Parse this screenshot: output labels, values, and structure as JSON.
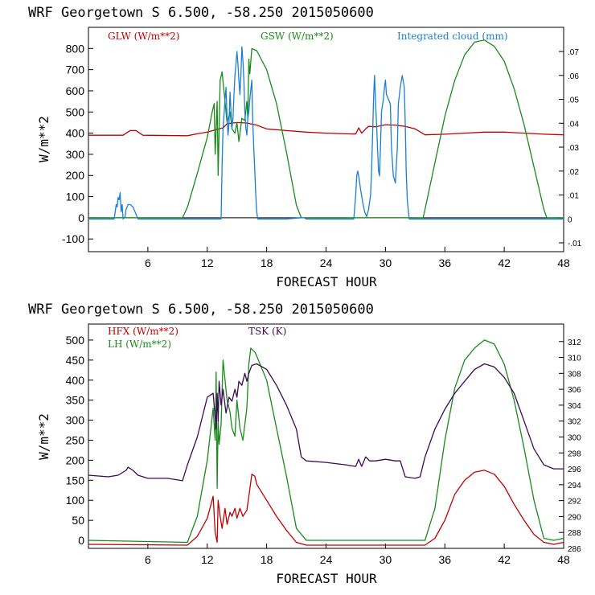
{
  "chart_data": [
    {
      "type": "line",
      "header": "WRF   Georgetown S   6.500, -58.250  2015050600",
      "xlabel": "FORECAST HOUR",
      "ylabel": "W/m**2",
      "xlim": [
        0,
        48
      ],
      "ylim": [
        -160,
        900
      ],
      "xticks": [
        6,
        12,
        18,
        24,
        30,
        36,
        42,
        48
      ],
      "yticks": [
        -100,
        0,
        100,
        200,
        300,
        400,
        500,
        600,
        700,
        800
      ],
      "y2lim": [
        -0.0137,
        0.0801
      ],
      "y2ticks": [
        -0.01,
        0,
        0.01,
        0.02,
        0.03,
        0.04,
        0.05,
        0.06,
        0.07
      ],
      "y2ticklabels": [
        "-.01",
        "0",
        ".01",
        ".02",
        ".03",
        ".04",
        ".05",
        ".06",
        ".07"
      ],
      "zero_line": true,
      "series": [
        {
          "name": "GLW (W/m**2)",
          "color": "#c00000",
          "axis": "left",
          "x": [
            0,
            3.5,
            4.2,
            4.8,
            5.5,
            10,
            11,
            12,
            13,
            13.6,
            14,
            15,
            16,
            17,
            18,
            20,
            22,
            24,
            26,
            27,
            27.3,
            27.6,
            28,
            28.3,
            29,
            30,
            31,
            32,
            33,
            34,
            36,
            38,
            40,
            42,
            44,
            46,
            48
          ],
          "y": [
            390,
            390,
            412,
            412,
            390,
            388,
            397,
            405,
            418,
            425,
            445,
            450,
            448,
            438,
            420,
            412,
            405,
            400,
            397,
            396,
            425,
            400,
            420,
            432,
            430,
            440,
            438,
            432,
            420,
            392,
            395,
            400,
            405,
            405,
            400,
            395,
            392
          ]
        },
        {
          "name": "GSW (W/m**2)",
          "color": "#1a8a1a",
          "axis": "left",
          "x": [
            0,
            9.5,
            10,
            11,
            12,
            12.5,
            12.7,
            12.8,
            13,
            13.1,
            13.3,
            13.5,
            14,
            14.3,
            14.5,
            14.8,
            15,
            15.2,
            15.5,
            15.8,
            16,
            16.1,
            16.2,
            16.3,
            16.5,
            17,
            18,
            19,
            20,
            21,
            21.5,
            22,
            33.8,
            34,
            35,
            36,
            37,
            38,
            39,
            40,
            41,
            42,
            43,
            44,
            45,
            46,
            46.3,
            48
          ],
          "y": [
            0,
            0,
            50,
            210,
            380,
            500,
            540,
            300,
            550,
            200,
            650,
            690,
            450,
            500,
            420,
            400,
            450,
            360,
            470,
            460,
            550,
            470,
            750,
            680,
            800,
            790,
            700,
            540,
            310,
            60,
            0,
            0,
            0,
            40,
            260,
            480,
            650,
            770,
            830,
            840,
            810,
            740,
            610,
            440,
            240,
            40,
            0,
            0
          ]
        },
        {
          "name": "Integrated cloud (mm)",
          "color": "#1a7fd4",
          "axis": "right",
          "x": [
            0,
            2.6,
            2.8,
            2.9,
            3.0,
            3.1,
            3.2,
            3.3,
            3.4,
            3.5,
            3.7,
            3.8,
            4.0,
            4.2,
            4.5,
            4.9,
            5.0,
            13.4,
            13.5,
            13.6,
            13.7,
            13.8,
            13.9,
            14.0,
            14.1,
            14.2,
            14.3,
            14.4,
            14.5,
            14.6,
            14.7,
            14.8,
            14.9,
            15.0,
            15.1,
            15.2,
            15.3,
            15.4,
            15.5,
            15.6,
            15.7,
            15.8,
            15.9,
            16.0,
            16.1,
            16.2,
            16.3,
            16.5,
            16.6,
            16.7,
            16.8,
            16.9,
            17.0,
            17.1,
            18.0,
            20.0,
            21.5,
            21.8,
            22.0,
            26.8,
            27.0,
            27.1,
            27.2,
            27.3,
            27.5,
            27.7,
            27.9,
            28.1,
            28.3,
            28.5,
            28.6,
            28.7,
            28.8,
            28.9,
            29.0,
            29.1,
            29.2,
            29.3,
            29.4,
            29.5,
            29.6,
            29.8,
            29.9,
            30.0,
            30.1,
            30.3,
            30.5,
            30.6,
            30.8,
            31.0,
            31.2,
            31.3,
            31.5,
            31.7,
            31.9,
            32.0,
            32.1,
            32.2,
            32.4,
            48.0
          ],
          "y": [
            0,
            0,
            0.006,
            0.005,
            0.009,
            0.008,
            0.011,
            0.003,
            0.006,
            0,
            0.001,
            0.004,
            0.006,
            0.006,
            0.005,
            0.001,
            0,
            0,
            0.022,
            0.038,
            0.044,
            0.05,
            0.055,
            0.042,
            0.035,
            0.04,
            0.053,
            0.045,
            0.038,
            0.042,
            0.052,
            0.06,
            0.065,
            0.07,
            0.065,
            0.058,
            0.052,
            0.06,
            0.072,
            0.066,
            0.058,
            0.045,
            0.038,
            0.035,
            0.042,
            0.045,
            0.05,
            0.058,
            0.04,
            0.03,
            0.02,
            0.01,
            0.003,
            0,
            0,
            0,
            0.0005,
            0.0005,
            0,
            0,
            0.01,
            0.018,
            0.02,
            0.018,
            0.012,
            0.007,
            0.003,
            0.001,
            0.004,
            0.01,
            0.02,
            0.035,
            0.05,
            0.06,
            0.048,
            0.04,
            0.03,
            0.02,
            0.018,
            0.03,
            0.045,
            0.05,
            0.055,
            0.058,
            0.052,
            0.05,
            0.048,
            0.03,
            0.018,
            0.015,
            0.03,
            0.048,
            0.055,
            0.06,
            0.055,
            0.04,
            0.02,
            0.008,
            0,
            0
          ]
        }
      ]
    },
    {
      "type": "line",
      "header": "WRF   Georgetown S   6.500, -58.250  2015050600",
      "xlabel": "FORECAST HOUR",
      "ylabel": "W/m**2",
      "xlim": [
        0,
        48
      ],
      "ylim": [
        -20,
        540
      ],
      "xticks": [
        6,
        12,
        18,
        24,
        30,
        36,
        42,
        48
      ],
      "yticks": [
        0,
        50,
        100,
        150,
        200,
        250,
        300,
        350,
        400,
        450,
        500
      ],
      "y2lim": [
        286,
        314.2
      ],
      "y2ticks": [
        286,
        288,
        290,
        292,
        294,
        296,
        298,
        300,
        302,
        304,
        306,
        308,
        310,
        312
      ],
      "y2ticklabels": [
        "286",
        "288",
        "290",
        "292",
        "294",
        "296",
        "298",
        "300",
        "302",
        "304",
        "306",
        "308",
        "310",
        "312"
      ],
      "zero_line": false,
      "series": [
        {
          "name": "HFX (W/m**2)",
          "color": "#c00000",
          "axis": "left",
          "x": [
            0,
            10,
            11,
            12,
            12.6,
            12.8,
            13.0,
            13.1,
            13.3,
            13.5,
            13.8,
            14,
            14.3,
            14.5,
            14.8,
            15,
            15.3,
            15.6,
            16,
            16.2,
            16.5,
            16.8,
            17,
            18,
            19,
            20,
            21,
            22,
            34,
            35,
            36,
            37,
            38,
            39,
            40,
            41,
            42,
            43,
            44,
            45,
            46,
            47,
            48
          ],
          "y": [
            -10,
            -12,
            10,
            55,
            110,
            20,
            -5,
            100,
            60,
            30,
            80,
            40,
            70,
            60,
            80,
            55,
            80,
            60,
            75,
            110,
            165,
            160,
            140,
            100,
            60,
            25,
            -5,
            -12,
            -12,
            5,
            50,
            115,
            150,
            170,
            175,
            165,
            135,
            90,
            50,
            15,
            -5,
            -10,
            -5
          ]
        },
        {
          "name": "LH (W/m**2)",
          "color": "#1a8a1a",
          "axis": "left",
          "x": [
            0,
            10,
            11,
            12,
            12.6,
            12.8,
            12.9,
            13.0,
            13.1,
            13.2,
            13.4,
            13.6,
            14,
            14.3,
            14.5,
            14.8,
            15,
            15.3,
            15.6,
            16,
            16.2,
            16.4,
            16.8,
            17,
            18,
            19,
            20,
            21,
            22,
            34,
            35,
            36,
            37,
            38,
            39,
            40,
            41,
            42,
            43,
            44,
            45,
            46,
            47,
            48
          ],
          "y": [
            0,
            -5,
            60,
            200,
            330,
            250,
            420,
            130,
            300,
            240,
            290,
            450,
            350,
            320,
            280,
            260,
            350,
            280,
            250,
            330,
            440,
            480,
            470,
            460,
            400,
            280,
            160,
            30,
            0,
            0,
            80,
            250,
            380,
            450,
            480,
            500,
            490,
            440,
            350,
            230,
            100,
            5,
            0,
            5
          ]
        },
        {
          "name": "TSK (K)",
          "color": "#3a0a55",
          "axis": "right",
          "x": [
            0,
            1,
            2,
            3,
            3.8,
            4,
            4.5,
            5,
            6,
            8,
            9.5,
            10,
            11,
            12,
            12.6,
            12.9,
            13.0,
            13.1,
            13.2,
            13.4,
            13.6,
            13.9,
            14.2,
            14.5,
            14.8,
            15.0,
            15.2,
            15.5,
            15.8,
            16.0,
            16.2,
            16.5,
            17,
            18,
            19,
            20,
            21,
            21.5,
            22,
            24,
            26,
            27,
            27.3,
            27.6,
            28,
            28.4,
            29,
            30,
            31,
            31.5,
            32,
            33,
            33.5,
            34,
            35,
            36,
            37,
            38,
            39,
            40,
            41,
            42,
            43,
            44,
            45,
            46,
            47,
            48
          ],
          "y": [
            295.2,
            295.1,
            295,
            295.2,
            295.8,
            296.2,
            295.8,
            295.2,
            294.8,
            294.8,
            294.5,
            296.5,
            300,
            305,
            305.5,
            301,
            305.5,
            302,
            307,
            304,
            306,
            303,
            305,
            304.5,
            306,
            305,
            307,
            306.5,
            308,
            307,
            308,
            309,
            309.2,
            308.5,
            306.5,
            304,
            301,
            297.5,
            297,
            296.8,
            296.5,
            296.3,
            297.2,
            296.3,
            297.5,
            297,
            297,
            297.2,
            297,
            297,
            295,
            294.8,
            295,
            297.5,
            301,
            303.5,
            305.5,
            307,
            308.5,
            309.2,
            308.8,
            307.5,
            305.5,
            302,
            298.5,
            296.5,
            296,
            296
          ]
        }
      ]
    }
  ]
}
